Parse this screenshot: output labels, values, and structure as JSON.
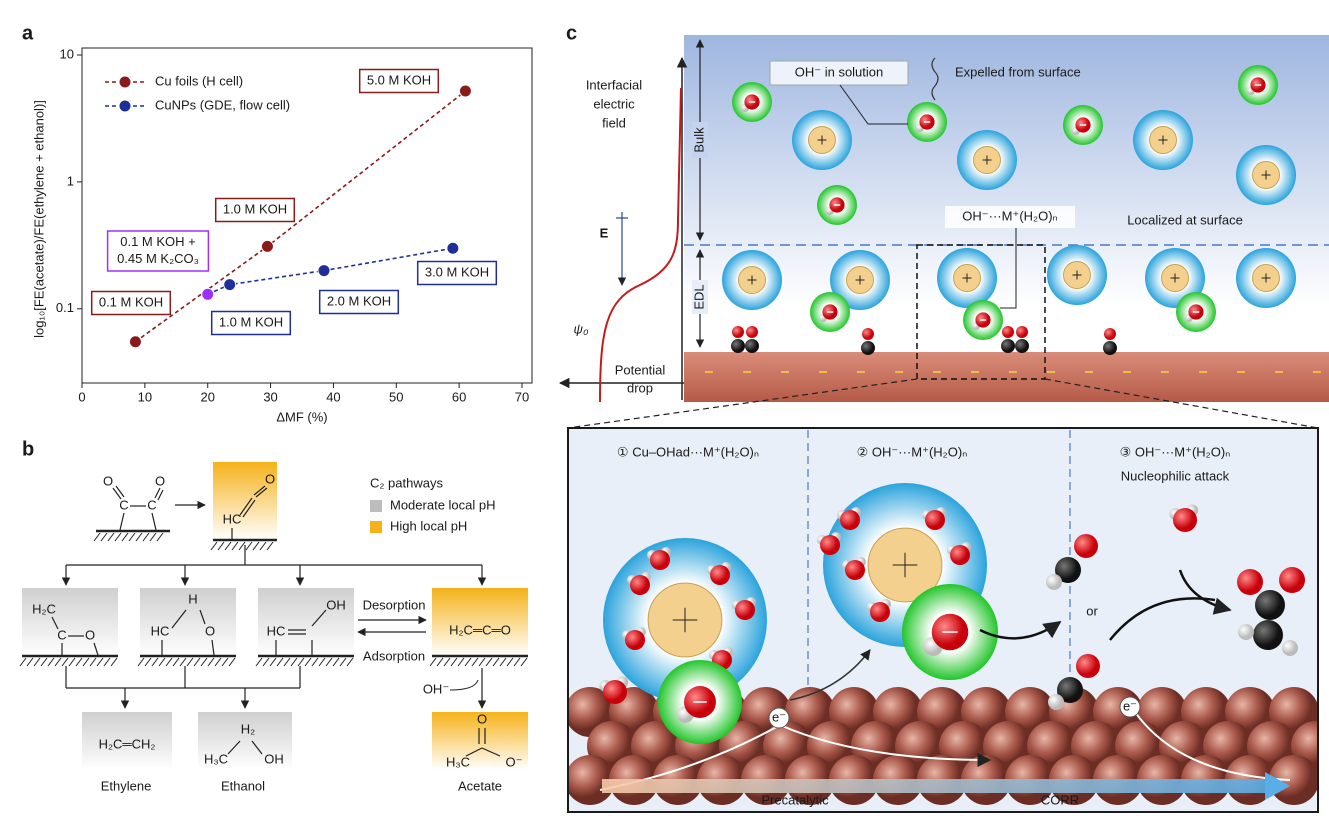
{
  "panel_labels": [
    "a",
    "b",
    "c"
  ],
  "chart_data": {
    "type": "scatter",
    "xlabel": "ΔMF (%)",
    "ylabel": "log₁₀[FE(acetate)/FE(ethylene + ethanol)]",
    "xlim": [
      0,
      70
    ],
    "xticks": [
      0,
      10,
      20,
      30,
      40,
      50,
      60,
      70
    ],
    "ylim": [
      0.026,
      10
    ],
    "yticks": [
      0.1,
      1,
      10
    ],
    "log_y": true,
    "legend": "upper left",
    "series": [
      {
        "name": "Cu foils (H cell)",
        "color": "#8b1a1a",
        "x": [
          8.5,
          29.5,
          61
        ],
        "values": [
          0.055,
          0.31,
          5.2
        ]
      },
      {
        "name": "CuNPs (GDE, flow cell)",
        "color": "#1f2f9a",
        "x": [
          20,
          23.5,
          38.5,
          59
        ],
        "values": [
          0.13,
          0.155,
          0.2,
          0.3
        ],
        "point_colors": [
          "#9b30ff",
          "#1f2f9a",
          "#1f2f9a",
          "#1f2f9a"
        ]
      }
    ],
    "annotations": [
      {
        "series": 0,
        "point": 0,
        "label": [
          "0.1 M KOH"
        ]
      },
      {
        "series": 0,
        "point": 1,
        "label": [
          "1.0 M KOH"
        ]
      },
      {
        "series": 0,
        "point": 2,
        "label": [
          "5.0 M KOH"
        ]
      },
      {
        "series": 1,
        "point": 0,
        "label": [
          "0.1 M KOH +",
          "0.45 M K₂CO₃"
        ]
      },
      {
        "series": 1,
        "point": 1,
        "label": [
          "1.0 M KOH"
        ]
      },
      {
        "series": 1,
        "point": 2,
        "label": [
          "2.0 M KOH"
        ]
      },
      {
        "series": 1,
        "point": 3,
        "label": [
          "3.0 M KOH"
        ]
      }
    ]
  },
  "diagram_b": {
    "legend_title": "C₂ pathways",
    "legend": [
      "Moderate local pH",
      "High local pH"
    ],
    "desorption": "Desorption",
    "adsorption": "Adsorption",
    "hydroxide": "OH⁻",
    "products": [
      "Ethylene",
      "Ethanol",
      "Acetate"
    ],
    "structures": [
      [
        "O",
        "O",
        "C",
        "C"
      ],
      [
        "HC",
        "O"
      ],
      [
        "H₂C",
        "C",
        "O"
      ],
      [
        "H",
        "HC",
        "O"
      ],
      [
        "OH",
        "HC"
      ],
      [
        "H₂C═C═O"
      ],
      [
        "H₂C═CH₂"
      ],
      [
        "H₂",
        "H₃C",
        "OH"
      ],
      [
        "O",
        "H₃C",
        "O⁻"
      ]
    ]
  },
  "diagram_c": {
    "field_label": [
      "Interfacial",
      "electric",
      "field"
    ],
    "bulk": "Bulk",
    "edl": "EDL",
    "e_field": "E",
    "psi": "ψ₀",
    "potential_drop": [
      "Potential",
      "drop"
    ],
    "oh_solution": "OH⁻ in solution",
    "expelled": "Expelled from surface",
    "oh_complex": "OH⁻···M⁺(H₂O)ₙ",
    "localized": "Localized at surface",
    "steps": [
      {
        "title": "① Cu–OHad···M⁺(H₂O)ₙ"
      },
      {
        "title": "② OH⁻···M⁺(H₂O)ₙ"
      },
      {
        "title": "③ OH⁻···M⁺(H₂O)ₙ",
        "subtitle": "Nucleophilic attack"
      }
    ],
    "or": "or",
    "electron": [
      "e⁻",
      "e⁻"
    ],
    "progress": [
      "Precatalytic",
      "CORR"
    ]
  }
}
